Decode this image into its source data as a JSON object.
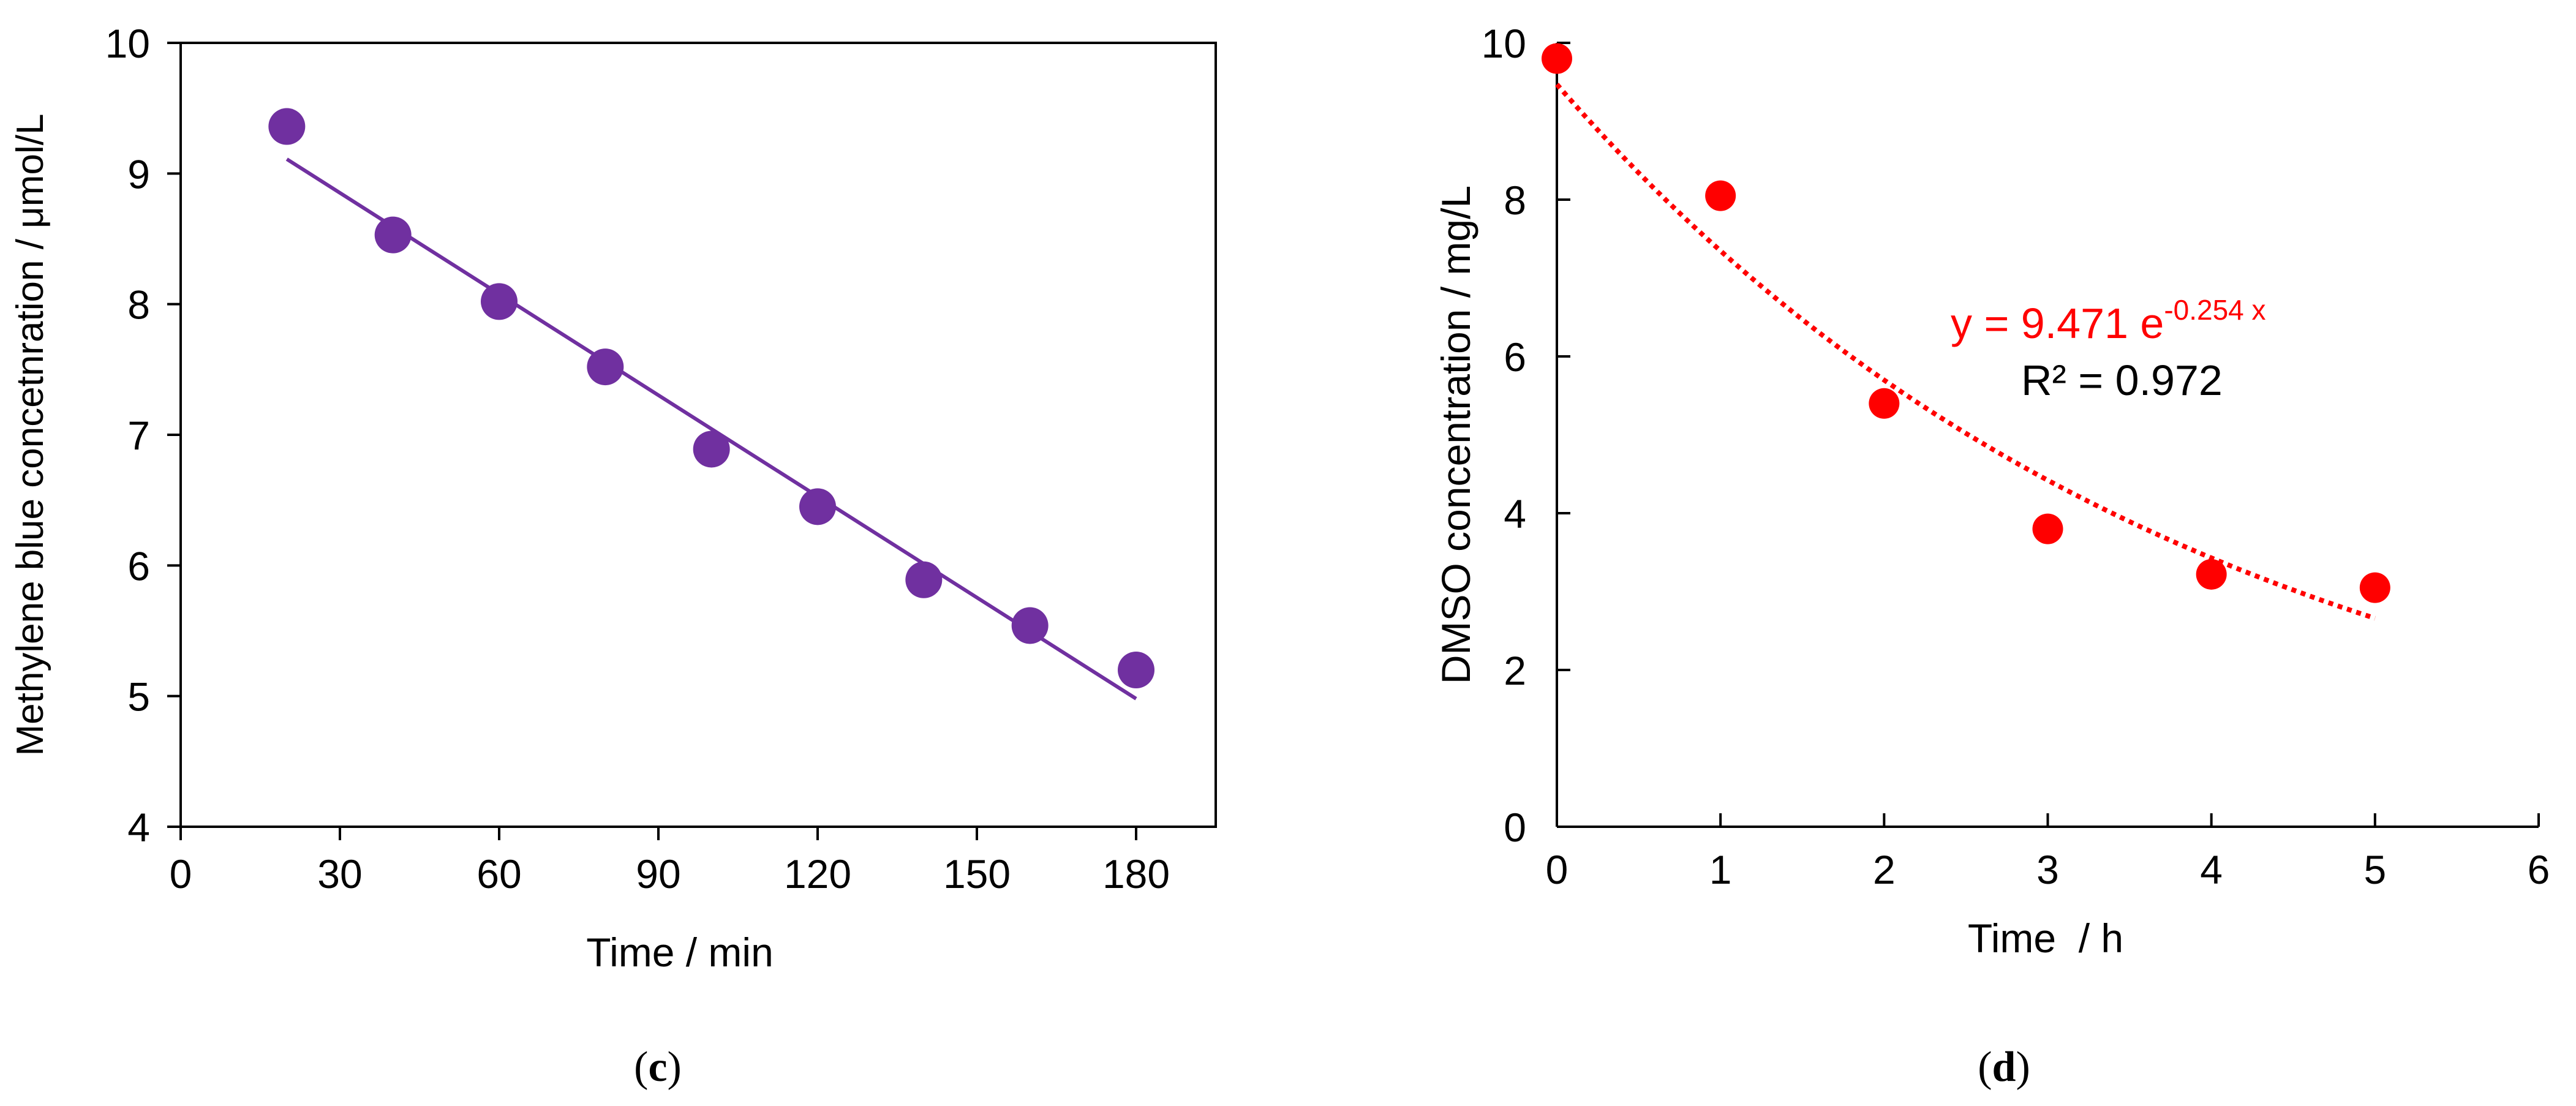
{
  "chart_data": [
    {
      "type": "scatter",
      "panel_label": "(c)",
      "panel_letter": "c",
      "xlabel": "Time / min",
      "ylabel": "Methylene blue concetnration / μmol/L",
      "xlim": [
        0,
        195
      ],
      "ylim": [
        4,
        10
      ],
      "xticks": [
        "0",
        "30",
        "60",
        "90",
        "120",
        "150",
        "180"
      ],
      "yticks": [
        "4",
        "5",
        "6",
        "7",
        "8",
        "9",
        "10"
      ],
      "color": "#7030A0",
      "series": [
        {
          "name": "Methylene blue",
          "x": [
            20,
            40,
            60,
            80,
            100,
            120,
            140,
            160,
            180
          ],
          "y": [
            9.36,
            8.53,
            8.02,
            7.52,
            6.89,
            6.45,
            5.89,
            5.54,
            5.2
          ]
        }
      ],
      "trendline": {
        "type": "linear",
        "x": [
          20,
          180
        ],
        "y": [
          9.11,
          4.98
        ]
      }
    },
    {
      "type": "scatter",
      "panel_label": "(d)",
      "panel_letter": "d",
      "xlabel": "Time  / h",
      "ylabel": "DMSO concentration / mg/L",
      "xlim": [
        0,
        6
      ],
      "ylim": [
        0,
        10
      ],
      "xticks": [
        "0",
        "1",
        "2",
        "3",
        "4",
        "5",
        "6"
      ],
      "yticks": [
        "0",
        "2",
        "4",
        "6",
        "8",
        "10"
      ],
      "color": "#FF0000",
      "series": [
        {
          "name": "DMSO",
          "x": [
            0,
            1,
            2,
            3,
            4,
            5
          ],
          "y": [
            9.8,
            8.05,
            5.4,
            3.8,
            3.22,
            3.05
          ]
        }
      ],
      "trendline": {
        "type": "exponential",
        "a": 9.471,
        "b": -0.254,
        "x_range": [
          0,
          5
        ]
      },
      "annotation": {
        "equation_prefix": "y = 9.471 e",
        "equation_exponent": "-0.254 x",
        "r_squared": "R² = 0.972"
      }
    }
  ]
}
